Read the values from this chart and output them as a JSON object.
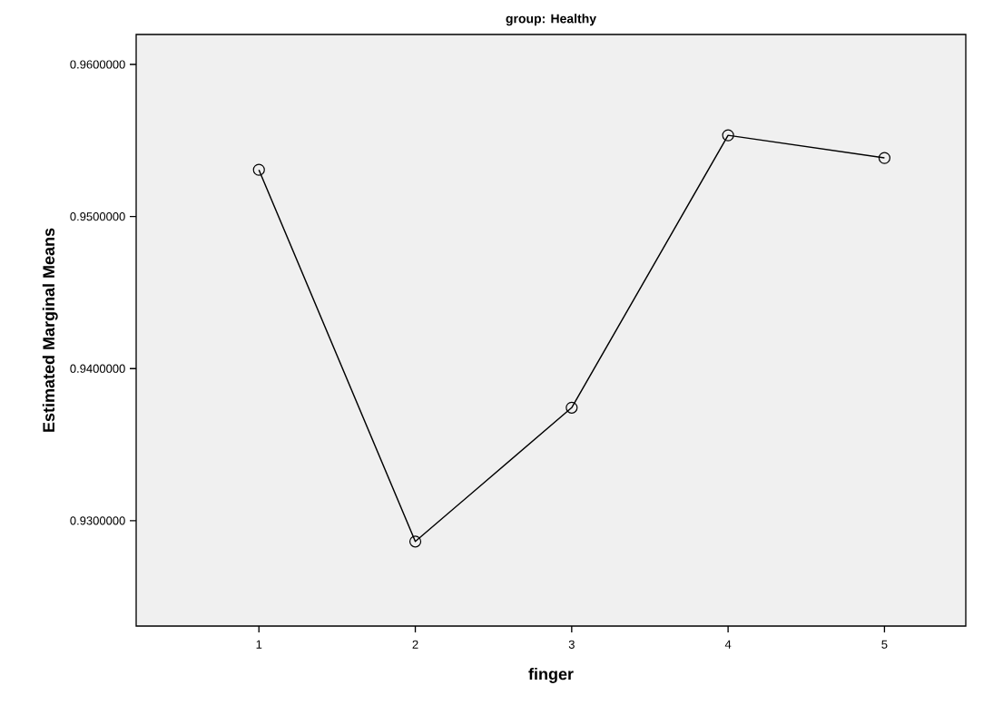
{
  "chart_data": {
    "type": "line",
    "title": "group: Healthy",
    "xlabel": "finger",
    "ylabel": "Estimated Marginal Means",
    "categories": [
      "1",
      "2",
      "3",
      "4",
      "5"
    ],
    "series": [
      {
        "color": "#000000",
        "values": [
          0.95307,
          0.92863,
          0.93743,
          0.95534,
          0.95385
        ]
      }
    ],
    "ylim": [
      0.92307,
      0.96197
    ],
    "yticks": [
      {
        "value": 0.93,
        "label": "0.9300000"
      },
      {
        "value": 0.94,
        "label": "0.9400000"
      },
      {
        "value": 0.95,
        "label": "0.9500000"
      },
      {
        "value": 0.96,
        "label": "0.9600000"
      }
    ],
    "marker": "circle",
    "line_style": "solid",
    "grid": false
  }
}
